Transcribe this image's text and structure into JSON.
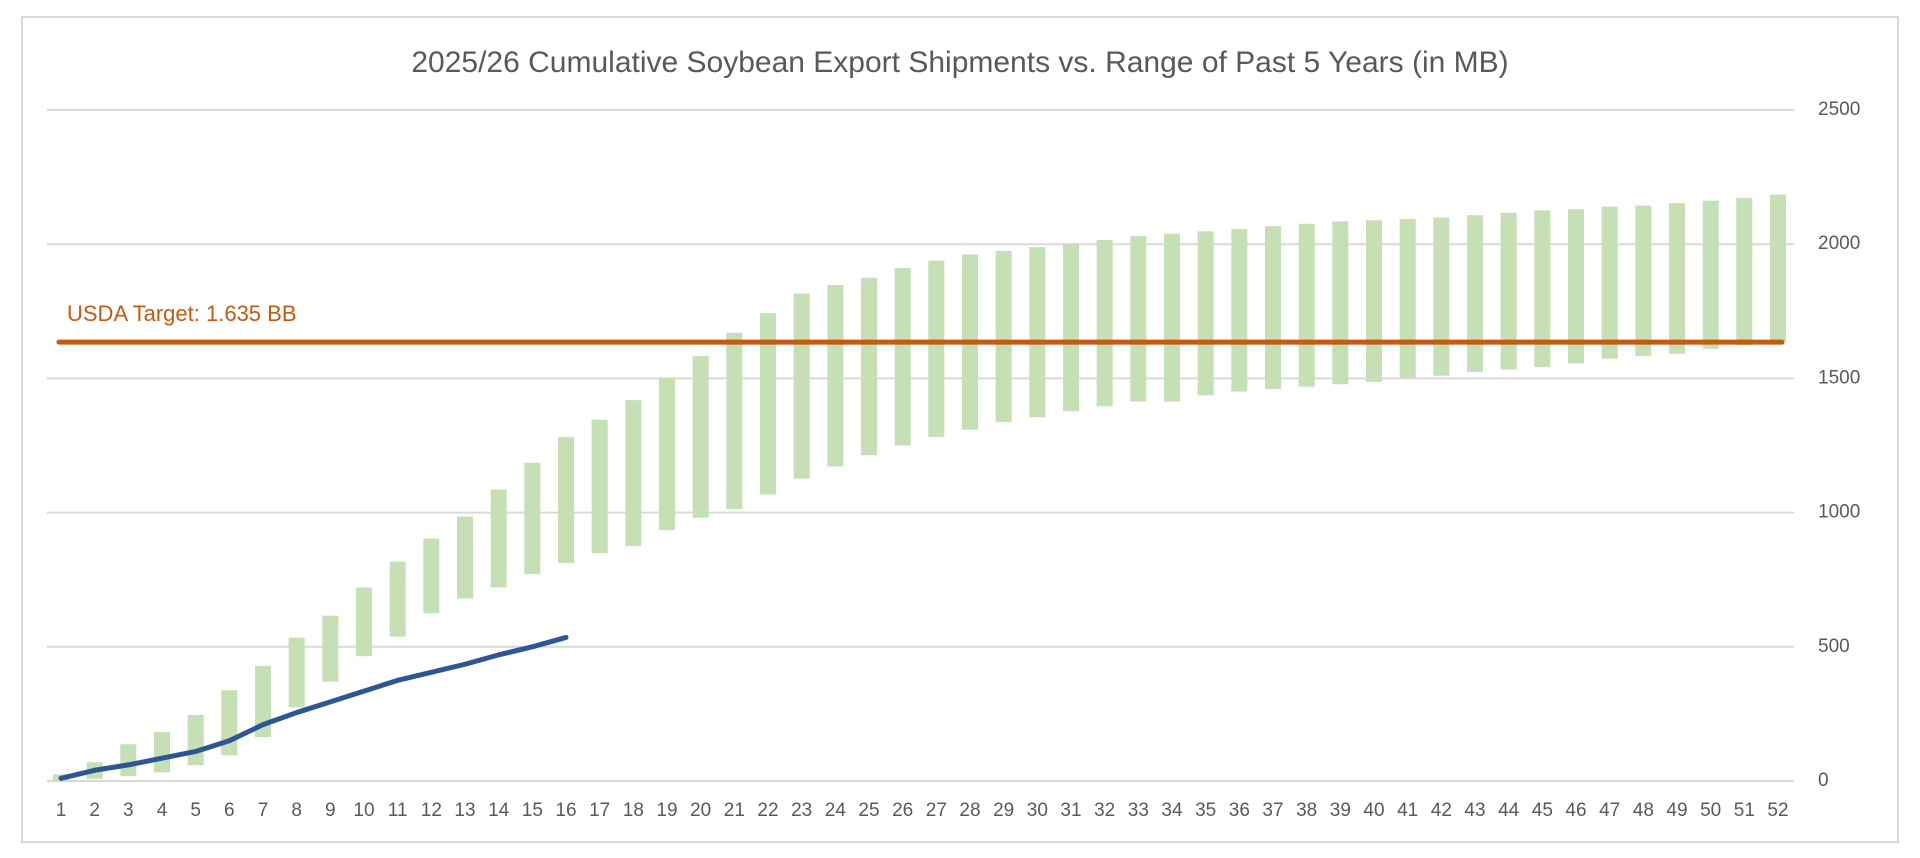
{
  "chart_data": {
    "type": "rangebar",
    "title": "2025/26 Cumulative Soybean Export Shipments vs. Range of Past 5 Years (in MB)",
    "categories": [
      "1",
      "2",
      "3",
      "4",
      "5",
      "6",
      "7",
      "8",
      "9",
      "10",
      "11",
      "12",
      "13",
      "14",
      "15",
      "16",
      "17",
      "18",
      "19",
      "20",
      "21",
      "22",
      "23",
      "24",
      "25",
      "26",
      "27",
      "28",
      "29",
      "30",
      "31",
      "32",
      "33",
      "34",
      "35",
      "36",
      "37",
      "38",
      "39",
      "40",
      "41",
      "42",
      "43",
      "44",
      "45",
      "46",
      "47",
      "48",
      "49",
      "50",
      "51",
      "52"
    ],
    "range_bars": {
      "color": "#c5e0b4",
      "low": [
        2,
        8,
        18,
        32,
        59,
        96,
        164,
        274,
        370,
        465,
        538,
        625,
        680,
        721,
        771,
        812,
        849,
        876,
        935,
        981,
        1013,
        1068,
        1127,
        1172,
        1214,
        1250,
        1282,
        1309,
        1337,
        1355,
        1378,
        1396,
        1414,
        1414,
        1437,
        1451,
        1460,
        1469,
        1478,
        1487,
        1501,
        1510,
        1524,
        1533,
        1542,
        1556,
        1574,
        1583,
        1592,
        1610,
        1624,
        1638
      ],
      "high": [
        25,
        70,
        137,
        182,
        246,
        338,
        429,
        534,
        616,
        721,
        817,
        903,
        985,
        1086,
        1186,
        1282,
        1346,
        1419,
        1501,
        1583,
        1670,
        1743,
        1816,
        1848,
        1875,
        1911,
        1939,
        1962,
        1975,
        1989,
        2003,
        2016,
        2030,
        2039,
        2048,
        2057,
        2067,
        2076,
        2085,
        2089,
        2094,
        2099,
        2108,
        2117,
        2126,
        2130,
        2140,
        2144,
        2153,
        2162,
        2172,
        2185
      ]
    },
    "line": {
      "color": "#2f5597",
      "values": [
        10,
        40,
        60,
        85,
        110,
        150,
        210,
        255,
        295,
        335,
        375,
        405,
        435,
        470,
        500,
        535
      ]
    },
    "target": {
      "value": 1635,
      "label": "USDA Target: 1.635 BB",
      "color": "#c55a11"
    },
    "ylim": [
      0,
      2500
    ],
    "yticks": [
      0,
      500,
      1000,
      1500,
      2000,
      2500
    ],
    "grid": true,
    "y_axis_side": "right"
  }
}
